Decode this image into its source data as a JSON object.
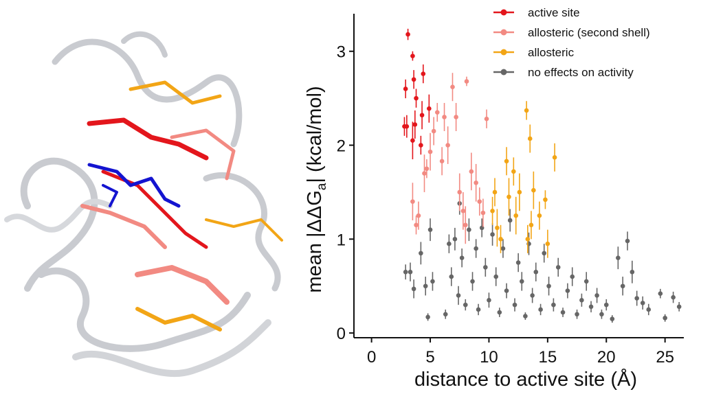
{
  "chart_data": {
    "type": "scatter",
    "xlabel": "distance to active site (Å)",
    "ylabel": [
      "mean |ΔΔG",
      "a",
      "| (kcal/mol)"
    ],
    "xlim": [
      -1.5,
      26.6
    ],
    "ylim": [
      -0.05,
      3.4
    ],
    "xticks": [
      0,
      5,
      10,
      15,
      20,
      25
    ],
    "yticks": [
      0,
      1,
      2,
      3
    ],
    "series": [
      {
        "name": "active site",
        "color": "#e3161c",
        "x": [
          2.9,
          3.1,
          2.8,
          3.0,
          3.5,
          3.6,
          3.5,
          3.7,
          3.8,
          4.3,
          4.4,
          4.9,
          4.2
        ],
        "values": [
          2.6,
          3.18,
          2.2,
          2.2,
          2.05,
          2.7,
          2.95,
          2.22,
          2.5,
          2.32,
          2.76,
          2.39,
          2.0
        ],
        "errors": [
          0.1,
          0.06,
          0.1,
          0.12,
          0.2,
          0.1,
          0.05,
          0.15,
          0.1,
          0.15,
          0.1,
          0.15,
          0.1
        ]
      },
      {
        "name": "allosteric (second shell)",
        "color": "#f28a82",
        "x": [
          3.5,
          4.0,
          4.5,
          5.0,
          5.3,
          5.6,
          6.2,
          6.5,
          6.9,
          7.2,
          7.5,
          7.8,
          8.1,
          8.5,
          8.9,
          9.2,
          9.5,
          9.8,
          4.7,
          3.8,
          6.0,
          8.0
        ],
        "values": [
          1.4,
          1.25,
          1.7,
          1.93,
          2.15,
          2.35,
          2.3,
          2.0,
          2.62,
          2.3,
          1.5,
          1.3,
          2.68,
          1.72,
          1.6,
          1.4,
          1.28,
          2.28,
          1.75,
          1.15,
          1.83,
          1.15
        ],
        "errors": [
          0.2,
          0.15,
          0.2,
          0.2,
          0.15,
          0.1,
          0.15,
          0.2,
          0.15,
          0.15,
          0.2,
          0.2,
          0.05,
          0.2,
          0.2,
          0.15,
          0.15,
          0.1,
          0.1,
          0.1,
          0.15,
          0.2
        ]
      },
      {
        "name": "allosteric",
        "color": "#f2a516",
        "x": [
          10.5,
          10.3,
          10.7,
          11.0,
          11.5,
          11.7,
          12.1,
          12.3,
          13.2,
          13.5,
          13.6,
          13.8,
          14.3,
          14.8,
          15.6,
          13.3,
          12.6,
          15.0
        ],
        "values": [
          1.5,
          1.3,
          1.12,
          1.0,
          1.83,
          1.45,
          1.72,
          1.25,
          2.37,
          2.07,
          1.15,
          1.52,
          1.25,
          1.42,
          1.87,
          1.0,
          1.5,
          0.95
        ],
        "errors": [
          0.15,
          0.15,
          0.2,
          0.15,
          0.15,
          0.2,
          0.15,
          0.2,
          0.1,
          0.15,
          0.15,
          0.2,
          0.15,
          0.1,
          0.15,
          0.15,
          0.2,
          0.15
        ]
      },
      {
        "name": "no effects on activity",
        "color": "#666666",
        "x": [
          2.9,
          3.3,
          3.6,
          4.2,
          4.6,
          4.8,
          5.0,
          5.2,
          6.3,
          6.6,
          6.8,
          7.1,
          7.4,
          7.5,
          7.7,
          8.0,
          8.3,
          8.6,
          8.9,
          9.1,
          9.4,
          9.7,
          10.0,
          10.3,
          10.6,
          10.9,
          11.2,
          11.5,
          11.8,
          12.2,
          12.5,
          12.8,
          13.1,
          13.4,
          13.7,
          14.0,
          14.4,
          14.7,
          15.1,
          15.5,
          15.9,
          16.3,
          16.7,
          17.1,
          17.5,
          17.9,
          18.3,
          18.7,
          19.2,
          19.6,
          20.0,
          20.5,
          21.0,
          21.4,
          21.8,
          22.2,
          22.6,
          23.1,
          23.6,
          24.6,
          25.0,
          25.7,
          26.2
        ],
        "values": [
          0.65,
          0.65,
          0.47,
          0.85,
          0.5,
          0.17,
          1.1,
          0.55,
          0.2,
          0.95,
          0.6,
          1.0,
          0.4,
          1.38,
          0.8,
          0.3,
          1.1,
          0.55,
          0.9,
          0.25,
          1.12,
          0.7,
          0.35,
          1.05,
          0.6,
          0.22,
          0.9,
          0.45,
          1.2,
          0.3,
          0.75,
          0.55,
          0.18,
          0.95,
          0.4,
          0.65,
          0.25,
          0.85,
          0.5,
          0.3,
          0.7,
          0.22,
          0.45,
          0.6,
          0.2,
          0.35,
          0.55,
          0.28,
          0.4,
          0.2,
          0.3,
          0.15,
          0.8,
          0.5,
          0.98,
          0.65,
          0.37,
          0.32,
          0.25,
          0.42,
          0.16,
          0.38,
          0.28
        ],
        "errors": [
          0.08,
          0.1,
          0.1,
          0.12,
          0.1,
          0.04,
          0.12,
          0.1,
          0.05,
          0.1,
          0.1,
          0.12,
          0.1,
          0.12,
          0.1,
          0.06,
          0.12,
          0.1,
          0.1,
          0.06,
          0.1,
          0.1,
          0.08,
          0.12,
          0.1,
          0.05,
          0.1,
          0.08,
          0.12,
          0.07,
          0.1,
          0.1,
          0.04,
          0.12,
          0.08,
          0.1,
          0.06,
          0.1,
          0.1,
          0.07,
          0.1,
          0.05,
          0.08,
          0.1,
          0.05,
          0.07,
          0.1,
          0.06,
          0.08,
          0.05,
          0.06,
          0.04,
          0.12,
          0.1,
          0.1,
          0.12,
          0.08,
          0.07,
          0.06,
          0.05,
          0.04,
          0.06,
          0.05
        ]
      }
    ]
  }
}
